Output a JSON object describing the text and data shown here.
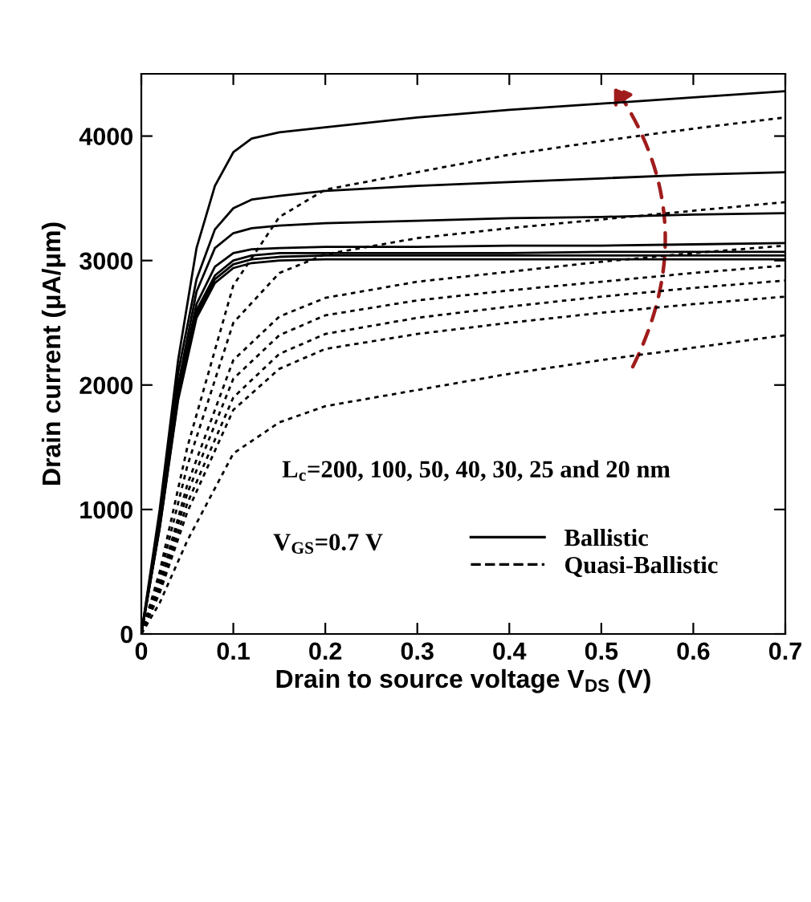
{
  "chart_data": {
    "type": "line",
    "xlabel": "Drain to source voltage V$_{DS}$ (V)",
    "ylabel": "Drain current (μA/μm)",
    "xlim": [
      0,
      0.7
    ],
    "ylim": [
      0,
      4500
    ],
    "xticks": [
      0,
      0.1,
      0.2,
      0.3,
      0.4,
      0.5,
      0.6,
      0.7
    ],
    "yticks": [
      0,
      1000,
      2000,
      3000,
      4000
    ],
    "grid": false,
    "legend": "bottom right",
    "marker": "none",
    "annotations": [
      "L$_{c}$=200, 100, 50, 40, 30, 25 and 20 nm",
      "V$_{GS}$=0.7 V"
    ],
    "series": [
      {
        "name": "Ballistic",
        "color": "#000000",
        "line_style": "solid",
        "x": [
          0,
          0.02,
          0.04,
          0.06,
          0.08,
          0.1,
          0.12,
          0.15,
          0.2,
          0.3,
          0.4,
          0.5,
          0.6,
          0.7
        ],
        "values": [
          0,
          1000,
          2200,
          3100,
          3600,
          3870,
          3980,
          4030,
          4070,
          4150,
          4210,
          4260,
          4310,
          4360
        ]
      },
      {
        "color": "#000000",
        "line_style": "solid",
        "x": [
          0,
          0.02,
          0.04,
          0.06,
          0.08,
          0.1,
          0.12,
          0.15,
          0.2,
          0.3,
          0.4,
          0.5,
          0.6,
          0.7
        ],
        "values": [
          0,
          950,
          2100,
          2850,
          3250,
          3420,
          3490,
          3520,
          3560,
          3600,
          3630,
          3660,
          3690,
          3710
        ]
      },
      {
        "color": "#000000",
        "line_style": "solid",
        "x": [
          0,
          0.02,
          0.04,
          0.06,
          0.08,
          0.1,
          0.12,
          0.15,
          0.2,
          0.3,
          0.4,
          0.5,
          0.6,
          0.7
        ],
        "values": [
          0,
          900,
          2000,
          2750,
          3100,
          3220,
          3260,
          3280,
          3300,
          3320,
          3340,
          3350,
          3370,
          3380
        ]
      },
      {
        "color": "#000000",
        "line_style": "solid",
        "x": [
          0,
          0.02,
          0.04,
          0.06,
          0.08,
          0.1,
          0.12,
          0.15,
          0.2,
          0.3,
          0.4,
          0.5,
          0.6,
          0.7
        ],
        "values": [
          0,
          880,
          1950,
          2650,
          2950,
          3060,
          3090,
          3100,
          3110,
          3110,
          3120,
          3120,
          3130,
          3140
        ]
      },
      {
        "color": "#000000",
        "line_style": "solid",
        "x": [
          0,
          0.02,
          0.04,
          0.06,
          0.08,
          0.1,
          0.12,
          0.15,
          0.2,
          0.3,
          0.4,
          0.5,
          0.6,
          0.7
        ],
        "values": [
          0,
          870,
          1920,
          2600,
          2880,
          3000,
          3040,
          3060,
          3060,
          3060,
          3060,
          3070,
          3070,
          3070
        ]
      },
      {
        "color": "#000000",
        "line_style": "solid",
        "x": [
          0,
          0.02,
          0.04,
          0.06,
          0.08,
          0.1,
          0.12,
          0.15,
          0.2,
          0.3,
          0.4,
          0.5,
          0.6,
          0.7
        ],
        "values": [
          0,
          860,
          1900,
          2570,
          2850,
          2970,
          3010,
          3030,
          3040,
          3040,
          3040,
          3040,
          3040,
          3040
        ]
      },
      {
        "color": "#000000",
        "line_style": "solid",
        "x": [
          0,
          0.02,
          0.04,
          0.06,
          0.08,
          0.1,
          0.12,
          0.15,
          0.2,
          0.3,
          0.4,
          0.5,
          0.6,
          0.7
        ],
        "values": [
          0,
          850,
          1880,
          2540,
          2820,
          2940,
          2980,
          3000,
          3010,
          3010,
          3010,
          3010,
          3010,
          3010
        ]
      },
      {
        "name": "Quasi-Ballistic",
        "color": "#000000",
        "line_style": "dashed",
        "x": [
          0,
          0.02,
          0.05,
          0.1,
          0.15,
          0.2,
          0.3,
          0.4,
          0.5,
          0.6,
          0.7
        ],
        "values": [
          0,
          500,
          1500,
          2800,
          3350,
          3570,
          3710,
          3850,
          3960,
          4060,
          4150
        ]
      },
      {
        "color": "#000000",
        "line_style": "dashed",
        "x": [
          0,
          0.02,
          0.05,
          0.1,
          0.15,
          0.2,
          0.3,
          0.4,
          0.5,
          0.6,
          0.7
        ],
        "values": [
          0,
          450,
          1350,
          2500,
          2900,
          3050,
          3180,
          3260,
          3330,
          3400,
          3470
        ]
      },
      {
        "color": "#000000",
        "line_style": "dashed",
        "x": [
          0,
          0.02,
          0.05,
          0.1,
          0.15,
          0.2,
          0.3,
          0.4,
          0.5,
          0.6,
          0.7
        ],
        "values": [
          0,
          400,
          1200,
          2200,
          2550,
          2700,
          2830,
          2910,
          2990,
          3060,
          3120
        ]
      },
      {
        "color": "#000000",
        "line_style": "dashed",
        "x": [
          0,
          0.02,
          0.05,
          0.1,
          0.15,
          0.2,
          0.3,
          0.4,
          0.5,
          0.6,
          0.7
        ],
        "values": [
          0,
          380,
          1130,
          2050,
          2400,
          2560,
          2680,
          2760,
          2830,
          2900,
          2960
        ]
      },
      {
        "color": "#000000",
        "line_style": "dashed",
        "x": [
          0,
          0.02,
          0.05,
          0.1,
          0.15,
          0.2,
          0.3,
          0.4,
          0.5,
          0.6,
          0.7
        ],
        "values": [
          0,
          350,
          1050,
          1900,
          2250,
          2410,
          2540,
          2630,
          2710,
          2780,
          2840
        ]
      },
      {
        "color": "#000000",
        "line_style": "dashed",
        "x": [
          0,
          0.02,
          0.05,
          0.1,
          0.15,
          0.2,
          0.3,
          0.4,
          0.5,
          0.6,
          0.7
        ],
        "values": [
          0,
          330,
          980,
          1800,
          2130,
          2290,
          2410,
          2500,
          2580,
          2650,
          2710
        ]
      },
      {
        "color": "#000000",
        "line_style": "dashed",
        "x": [
          0,
          0.02,
          0.05,
          0.1,
          0.15,
          0.2,
          0.3,
          0.4,
          0.5,
          0.6,
          0.7
        ],
        "values": [
          0,
          250,
          750,
          1450,
          1700,
          1830,
          1960,
          2090,
          2200,
          2300,
          2400
        ]
      }
    ]
  }
}
